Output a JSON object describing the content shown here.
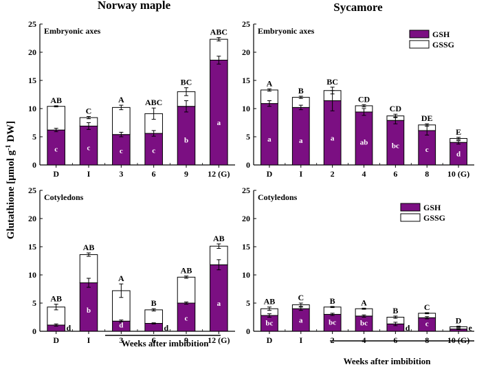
{
  "figure": {
    "ylabel_main": "Glutathione [μmol g",
    "ylabel_sup": "-1",
    "ylabel_end": " DW]",
    "weeks_label": "Weeks after imbibition",
    "colors": {
      "gsh": "#7B0F82",
      "gssg": "#ffffff",
      "axis": "#000000"
    }
  },
  "column_titles": [
    "Norway maple",
    "Sycamore"
  ],
  "legend": {
    "gsh": "GSH",
    "gssg": "GSSG"
  },
  "chart_data": [
    {
      "type": "bar",
      "stacked": true,
      "title": "Norway maple",
      "panel_title": "Embryonic axes",
      "categories": [
        "D",
        "I",
        "3",
        "6",
        "9",
        "12 (G)"
      ],
      "ylim": [
        0,
        25
      ],
      "yticks": [
        0,
        5,
        10,
        15,
        20,
        25
      ],
      "series": [
        {
          "name": "GSH",
          "values": [
            6.2,
            6.9,
            5.4,
            5.6,
            10.4,
            18.6
          ],
          "errors": [
            0.3,
            0.6,
            0.4,
            0.5,
            1.0,
            0.7
          ],
          "labels": [
            "c",
            "c",
            "c",
            "c",
            "b",
            "a"
          ]
        },
        {
          "name": "GSSG",
          "values": [
            4.2,
            1.5,
            4.8,
            3.5,
            2.6,
            3.7
          ],
          "errors": [
            0.1,
            0.2,
            0.4,
            1.0,
            0.7,
            0.3
          ]
        }
      ],
      "group_labels": [
        "AB",
        "C",
        "A",
        "ABC",
        "BC",
        "ABC"
      ],
      "legend": false
    },
    {
      "type": "bar",
      "stacked": true,
      "title": "Sycamore",
      "panel_title": "Embryonic axes",
      "categories": [
        "D",
        "I",
        "2",
        "4",
        "6",
        "8",
        "10 (G)"
      ],
      "ylim": [
        0,
        25
      ],
      "yticks": [
        0,
        5,
        10,
        15,
        20,
        25
      ],
      "series": [
        {
          "name": "GSH",
          "values": [
            10.9,
            10.2,
            11.4,
            9.4,
            7.9,
            6.1,
            4.0
          ],
          "errors": [
            0.5,
            0.4,
            1.8,
            0.6,
            0.6,
            0.8,
            0.3
          ],
          "labels": [
            "a",
            "a",
            "a",
            "ab",
            "bc",
            "c",
            "d"
          ]
        },
        {
          "name": "GSSG",
          "values": [
            2.4,
            1.8,
            1.8,
            1.1,
            0.8,
            1.0,
            0.7
          ],
          "errors": [
            0.2,
            0.2,
            0.6,
            0.2,
            0.3,
            0.2,
            0.2
          ]
        }
      ],
      "group_labels": [
        "A",
        "B",
        "BC",
        "CD",
        "CD",
        "DE",
        "E"
      ],
      "legend": true
    },
    {
      "type": "bar",
      "stacked": true,
      "title": "Norway maple",
      "panel_title": "Cotyledons",
      "categories": [
        "D",
        "I",
        "3",
        "6",
        "9",
        "12 (G)"
      ],
      "ylim": [
        0,
        25
      ],
      "yticks": [
        0,
        5,
        10,
        15,
        20,
        25
      ],
      "series": [
        {
          "name": "GSH",
          "values": [
            1.1,
            8.6,
            1.8,
            1.4,
            5.0,
            11.8
          ],
          "errors": [
            0.2,
            0.8,
            0.2,
            0.1,
            0.2,
            0.9
          ],
          "labels": [
            "d",
            "b",
            "d",
            "d",
            "c",
            "a"
          ]
        },
        {
          "name": "GSSG",
          "values": [
            3.2,
            5.0,
            5.4,
            2.4,
            4.6,
            3.3
          ],
          "errors": [
            0.5,
            0.3,
            1.2,
            0.2,
            0.2,
            0.4
          ]
        }
      ],
      "group_labels": [
        "AB",
        "AB",
        "A",
        "B",
        "AB",
        "AB"
      ],
      "legend": false
    },
    {
      "type": "bar",
      "stacked": true,
      "title": "Sycamore",
      "panel_title": "Cotyledons",
      "categories": [
        "D",
        "I",
        "2",
        "4",
        "6",
        "8",
        "10 (G)"
      ],
      "ylim": [
        0,
        25
      ],
      "yticks": [
        0,
        5,
        10,
        15,
        20,
        25
      ],
      "series": [
        {
          "name": "GSH",
          "values": [
            2.8,
            4.0,
            3.0,
            2.7,
            1.3,
            2.4,
            0.4
          ],
          "errors": [
            0.3,
            0.3,
            0.2,
            0.2,
            0.3,
            0.2,
            0.1
          ],
          "labels": [
            "bc",
            "a",
            "bc",
            "bc",
            "d",
            "c",
            "e"
          ]
        },
        {
          "name": "GSSG",
          "values": [
            1.2,
            0.7,
            1.3,
            1.3,
            1.2,
            0.8,
            0.4
          ],
          "errors": [
            0.3,
            0.3,
            0.1,
            0.1,
            0.2,
            0.1,
            0.1
          ]
        }
      ],
      "group_labels": [
        "AB",
        "C",
        "B",
        "A",
        "B",
        "C",
        "D"
      ],
      "legend": true
    }
  ]
}
